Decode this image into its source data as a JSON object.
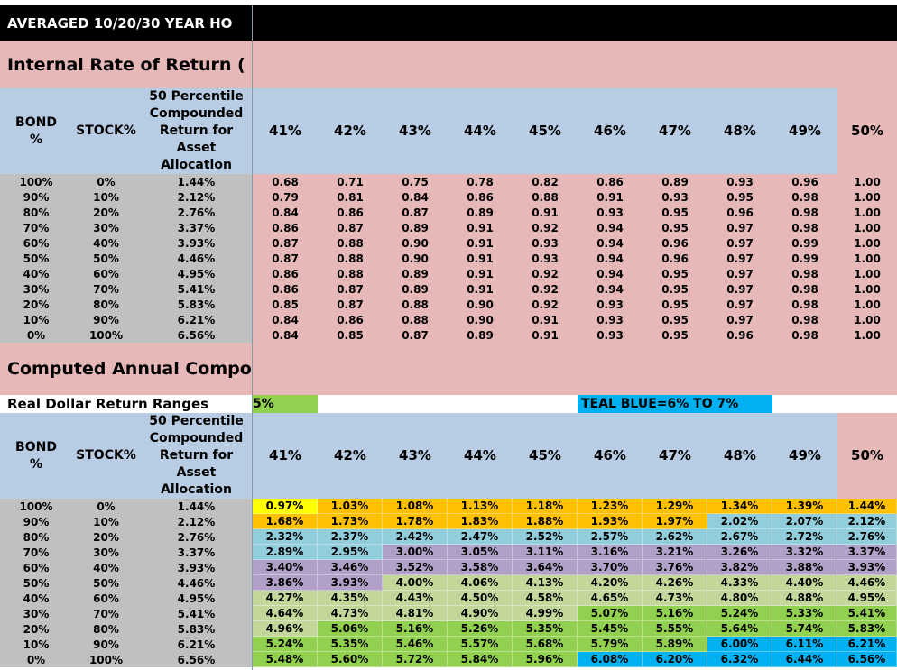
{
  "title": "AVERAGED 10/20/30 YEAR HO",
  "section1": {
    "heading": "Internal Rate of Return (",
    "table": {
      "header": [
        "BOND %",
        "STOCK%",
        "50 Percentile Compounded Return for Asset Allocation",
        "41%",
        "42%",
        "43%",
        "44%",
        "45%",
        "46%",
        "47%",
        "48%",
        "49%",
        "50%"
      ],
      "rows": [
        [
          "100%",
          "0%",
          "1.44%",
          "0.68",
          "0.71",
          "0.75",
          "0.78",
          "0.82",
          "0.86",
          "0.89",
          "0.93",
          "0.96",
          "1.00"
        ],
        [
          "90%",
          "10%",
          "2.12%",
          "0.79",
          "0.81",
          "0.84",
          "0.86",
          "0.88",
          "0.91",
          "0.93",
          "0.95",
          "0.98",
          "1.00"
        ],
        [
          "80%",
          "20%",
          "2.76%",
          "0.84",
          "0.86",
          "0.87",
          "0.89",
          "0.91",
          "0.93",
          "0.95",
          "0.96",
          "0.98",
          "1.00"
        ],
        [
          "70%",
          "30%",
          "3.37%",
          "0.86",
          "0.87",
          "0.89",
          "0.91",
          "0.92",
          "0.94",
          "0.95",
          "0.97",
          "0.98",
          "1.00"
        ],
        [
          "60%",
          "40%",
          "3.93%",
          "0.87",
          "0.88",
          "0.90",
          "0.91",
          "0.93",
          "0.94",
          "0.96",
          "0.97",
          "0.99",
          "1.00"
        ],
        [
          "50%",
          "50%",
          "4.46%",
          "0.87",
          "0.88",
          "0.90",
          "0.91",
          "0.93",
          "0.94",
          "0.96",
          "0.97",
          "0.99",
          "1.00"
        ],
        [
          "40%",
          "60%",
          "4.95%",
          "0.86",
          "0.88",
          "0.89",
          "0.91",
          "0.92",
          "0.94",
          "0.95",
          "0.97",
          "0.98",
          "1.00"
        ],
        [
          "30%",
          "70%",
          "5.41%",
          "0.86",
          "0.87",
          "0.89",
          "0.91",
          "0.92",
          "0.94",
          "0.95",
          "0.97",
          "0.98",
          "1.00"
        ],
        [
          "20%",
          "80%",
          "5.83%",
          "0.85",
          "0.87",
          "0.88",
          "0.90",
          "0.92",
          "0.93",
          "0.95",
          "0.97",
          "0.98",
          "1.00"
        ],
        [
          "10%",
          "90%",
          "6.21%",
          "0.84",
          "0.86",
          "0.88",
          "0.90",
          "0.91",
          "0.93",
          "0.95",
          "0.97",
          "0.98",
          "1.00"
        ],
        [
          "0%",
          "100%",
          "6.56%",
          "0.84",
          "0.85",
          "0.87",
          "0.89",
          "0.91",
          "0.93",
          "0.95",
          "0.96",
          "0.98",
          "1.00"
        ]
      ]
    }
  },
  "section2": {
    "heading": "Computed Annual Compo",
    "legend": {
      "label": "Real Dollar Return Ranges",
      "green": "5%",
      "teal": "TEAL BLUE=6% TO 7%"
    },
    "table": {
      "header": [
        "BOND %",
        "STOCK%",
        "50 Percentile Compounded Return for Asset Allocation",
        "41%",
        "42%",
        "43%",
        "44%",
        "45%",
        "46%",
        "47%",
        "48%",
        "49%",
        "50%"
      ],
      "rows": [
        [
          "100%",
          "0%",
          "1.44%",
          "0.97%",
          "1.03%",
          "1.08%",
          "1.13%",
          "1.18%",
          "1.23%",
          "1.29%",
          "1.34%",
          "1.39%",
          "1.44%"
        ],
        [
          "90%",
          "10%",
          "2.12%",
          "1.68%",
          "1.73%",
          "1.78%",
          "1.83%",
          "1.88%",
          "1.93%",
          "1.97%",
          "2.02%",
          "2.07%",
          "2.12%"
        ],
        [
          "80%",
          "20%",
          "2.76%",
          "2.32%",
          "2.37%",
          "2.42%",
          "2.47%",
          "2.52%",
          "2.57%",
          "2.62%",
          "2.67%",
          "2.72%",
          "2.76%"
        ],
        [
          "70%",
          "30%",
          "3.37%",
          "2.89%",
          "2.95%",
          "3.00%",
          "3.05%",
          "3.11%",
          "3.16%",
          "3.21%",
          "3.26%",
          "3.32%",
          "3.37%"
        ],
        [
          "60%",
          "40%",
          "3.93%",
          "3.40%",
          "3.46%",
          "3.52%",
          "3.58%",
          "3.64%",
          "3.70%",
          "3.76%",
          "3.82%",
          "3.88%",
          "3.93%"
        ],
        [
          "50%",
          "50%",
          "4.46%",
          "3.86%",
          "3.93%",
          "4.00%",
          "4.06%",
          "4.13%",
          "4.20%",
          "4.26%",
          "4.33%",
          "4.40%",
          "4.46%"
        ],
        [
          "40%",
          "60%",
          "4.95%",
          "4.27%",
          "4.35%",
          "4.43%",
          "4.50%",
          "4.58%",
          "4.65%",
          "4.73%",
          "4.80%",
          "4.88%",
          "4.95%"
        ],
        [
          "30%",
          "70%",
          "5.41%",
          "4.64%",
          "4.73%",
          "4.81%",
          "4.90%",
          "4.99%",
          "5.07%",
          "5.16%",
          "5.24%",
          "5.33%",
          "5.41%"
        ],
        [
          "20%",
          "80%",
          "5.83%",
          "4.96%",
          "5.06%",
          "5.16%",
          "5.26%",
          "5.35%",
          "5.45%",
          "5.55%",
          "5.64%",
          "5.74%",
          "5.83%"
        ],
        [
          "10%",
          "90%",
          "6.21%",
          "5.24%",
          "5.35%",
          "5.46%",
          "5.57%",
          "5.68%",
          "5.79%",
          "5.89%",
          "6.00%",
          "6.11%",
          "6.21%"
        ],
        [
          "0%",
          "100%",
          "6.56%",
          "5.48%",
          "5.60%",
          "5.72%",
          "5.84%",
          "5.96%",
          "6.08%",
          "6.20%",
          "6.32%",
          "6.44%",
          "6.56%"
        ]
      ],
      "cell_colors": [
        [
          "#ffff00",
          "#ffc000",
          "#ffc000",
          "#ffc000",
          "#ffc000",
          "#ffc000",
          "#ffc000",
          "#ffc000",
          "#ffc000",
          "#ffc000"
        ],
        [
          "#ffc000",
          "#ffc000",
          "#ffc000",
          "#ffc000",
          "#ffc000",
          "#ffc000",
          "#ffc000",
          "#92cddc",
          "#92cddc",
          "#92cddc"
        ],
        [
          "#92cddc",
          "#92cddc",
          "#92cddc",
          "#92cddc",
          "#92cddc",
          "#92cddc",
          "#92cddc",
          "#92cddc",
          "#92cddc",
          "#92cddc"
        ],
        [
          "#92cddc",
          "#92cddc",
          "#b1a0c7",
          "#b1a0c7",
          "#b1a0c7",
          "#b1a0c7",
          "#b1a0c7",
          "#b1a0c7",
          "#b1a0c7",
          "#b1a0c7"
        ],
        [
          "#b1a0c7",
          "#b1a0c7",
          "#b1a0c7",
          "#b1a0c7",
          "#b1a0c7",
          "#b1a0c7",
          "#b1a0c7",
          "#b1a0c7",
          "#b1a0c7",
          "#b1a0c7"
        ],
        [
          "#b1a0c7",
          "#b1a0c7",
          "#c4d79b",
          "#c4d79b",
          "#c4d79b",
          "#c4d79b",
          "#c4d79b",
          "#c4d79b",
          "#c4d79b",
          "#c4d79b"
        ],
        [
          "#c4d79b",
          "#c4d79b",
          "#c4d79b",
          "#c4d79b",
          "#c4d79b",
          "#c4d79b",
          "#c4d79b",
          "#c4d79b",
          "#c4d79b",
          "#c4d79b"
        ],
        [
          "#c4d79b",
          "#c4d79b",
          "#c4d79b",
          "#c4d79b",
          "#c4d79b",
          "#92d050",
          "#92d050",
          "#92d050",
          "#92d050",
          "#92d050"
        ],
        [
          "#c4d79b",
          "#92d050",
          "#92d050",
          "#92d050",
          "#92d050",
          "#92d050",
          "#92d050",
          "#92d050",
          "#92d050",
          "#92d050"
        ],
        [
          "#92d050",
          "#92d050",
          "#92d050",
          "#92d050",
          "#92d050",
          "#92d050",
          "#92d050",
          "#00b0f0",
          "#00b0f0",
          "#00b0f0"
        ],
        [
          "#92d050",
          "#92d050",
          "#92d050",
          "#92d050",
          "#92d050",
          "#00b0f0",
          "#00b0f0",
          "#00b0f0",
          "#00b0f0",
          "#00b0f0"
        ]
      ]
    }
  }
}
